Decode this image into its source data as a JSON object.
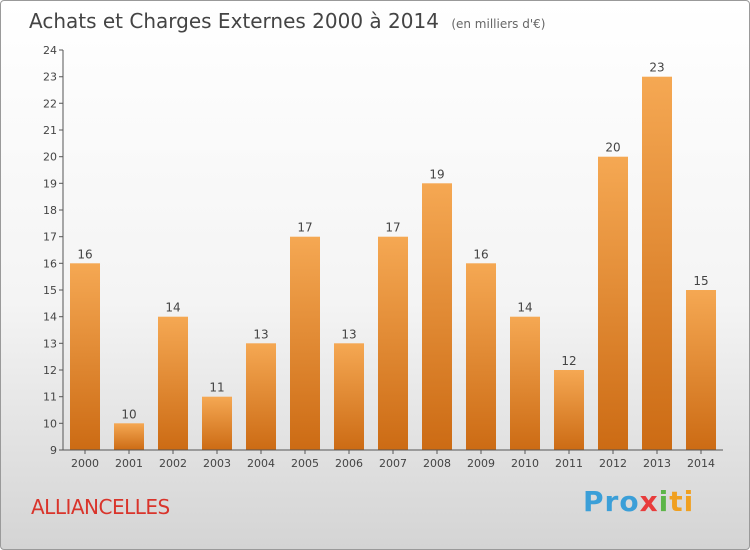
{
  "header": {
    "title": "Achats et Charges Externes 2000 à 2014",
    "subtitle": "(en milliers d'€)"
  },
  "footer": {
    "commune": "ALLIANCELLES",
    "logo_parts": [
      "Pro",
      "x",
      "i",
      "ti"
    ]
  },
  "colors": {
    "bar_top": "#f5a853",
    "bar_bottom": "#cc6b14",
    "axis": "#555555",
    "text": "#444444",
    "commune": "#d9342b"
  },
  "chart_data": {
    "type": "bar",
    "title": "Achats et Charges Externes 2000 à 2014",
    "subtitle": "(en milliers d'€)",
    "xlabel": "",
    "ylabel": "",
    "categories": [
      "2000",
      "2001",
      "2002",
      "2003",
      "2004",
      "2005",
      "2006",
      "2007",
      "2008",
      "2009",
      "2010",
      "2011",
      "2012",
      "2013",
      "2014"
    ],
    "values": [
      16,
      10,
      14,
      11,
      13,
      17,
      13,
      17,
      19,
      16,
      14,
      12,
      20,
      23,
      15
    ],
    "ylim": [
      9,
      24
    ],
    "yticks": [
      9,
      10,
      11,
      12,
      13,
      14,
      15,
      16,
      17,
      18,
      19,
      20,
      21,
      22,
      23,
      24
    ],
    "grid": false,
    "data_labels": true
  }
}
